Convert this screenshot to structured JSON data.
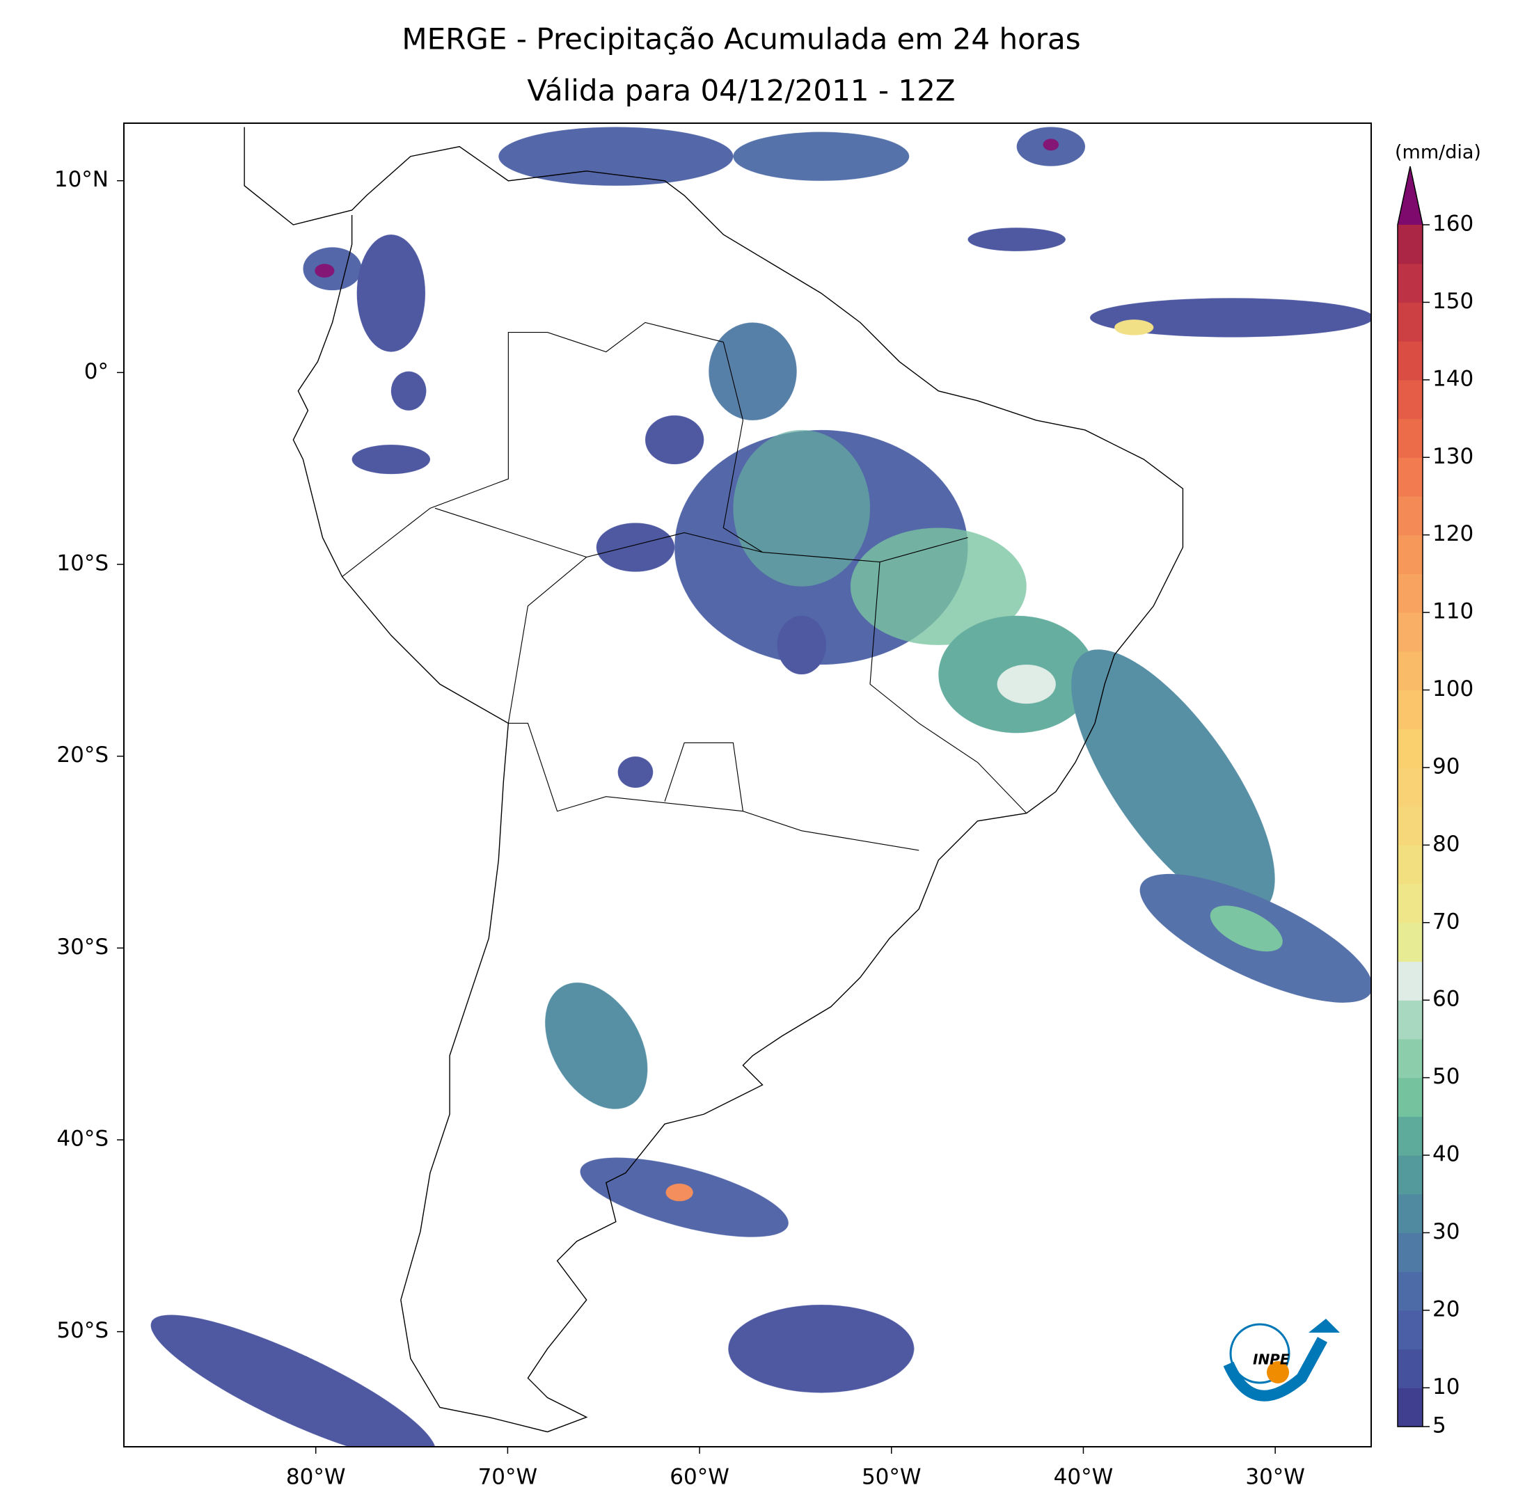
{
  "chart_data": {
    "type": "map",
    "title": "MERGE - Precipitação Acumulada em 24 horas",
    "subtitle": "Válida para 04/12/2011 - 12Z",
    "xlim": [
      -90,
      -25
    ],
    "ylim": [
      -56,
      13
    ],
    "xticks": [
      {
        "value": -80,
        "label": "80°W"
      },
      {
        "value": -70,
        "label": "70°W"
      },
      {
        "value": -60,
        "label": "60°W"
      },
      {
        "value": -50,
        "label": "50°W"
      },
      {
        "value": -40,
        "label": "40°W"
      },
      {
        "value": -30,
        "label": "30°W"
      }
    ],
    "yticks": [
      {
        "value": 10,
        "label": "10°N"
      },
      {
        "value": 0,
        "label": "0°"
      },
      {
        "value": -10,
        "label": "10°S"
      },
      {
        "value": -20,
        "label": "20°S"
      },
      {
        "value": -30,
        "label": "30°S"
      },
      {
        "value": -40,
        "label": "40°S"
      },
      {
        "value": -50,
        "label": "50°S"
      }
    ],
    "colorbar": {
      "label": "(mm/dia)",
      "lim": [
        5,
        160
      ],
      "ticks": [
        5,
        10,
        20,
        30,
        40,
        50,
        60,
        70,
        80,
        90,
        100,
        110,
        120,
        130,
        140,
        150,
        160
      ],
      "colors": [
        "#3f3e8f",
        "#46519e",
        "#4a5fa5",
        "#4d6ba6",
        "#4f7aa5",
        "#4f8aa0",
        "#54999b",
        "#5eab9b",
        "#74c29e",
        "#8ccdab",
        "#a8d8c0",
        "#dfebe5",
        "#e6eb94",
        "#efe68a",
        "#f2df80",
        "#f6d77a",
        "#f9d276",
        "#fad06f",
        "#fbc56c",
        "#fabb69",
        "#f9b066",
        "#f8a460",
        "#f6985a",
        "#f48a55",
        "#f27c50",
        "#ec6c4a",
        "#e55d46",
        "#d94d43",
        "#cc3f43",
        "#bd3244",
        "#ab2545"
      ],
      "extend_color": "#7e0a6e"
    }
  }
}
